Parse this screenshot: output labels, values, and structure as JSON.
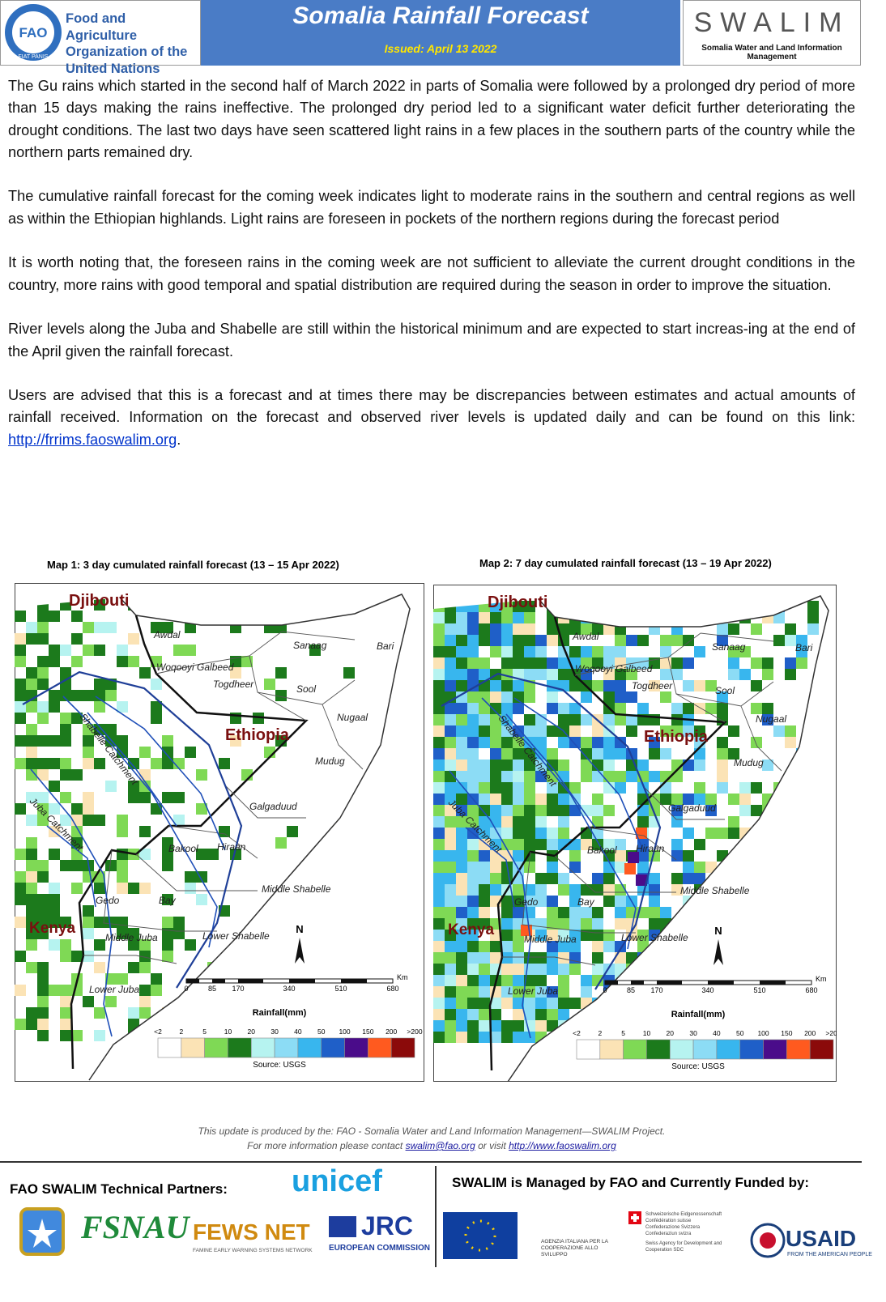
{
  "header": {
    "fao": "FAO",
    "fiat": "FIAT PANIS",
    "org_lines": [
      "Food and Agriculture",
      "Organization of the",
      "United Nations"
    ],
    "title": "Somalia Rainfall Forecast",
    "issued": "Issued:  April 13 2022",
    "swalim": "SWALIM",
    "swalim_sub": "Somalia Water and Land Information Management"
  },
  "paragraphs": [
    "The Gu rains which started in the second half of March 2022 in parts of Somalia were followed by a prolonged dry period of more than 15 days making the rains ineffective. The prolonged dry period led to a significant water deficit further deteriorating the drought conditions. The last two days have seen scattered light rains in a few places in the southern parts of the country while the northern parts remained dry.",
    "The cumulative rainfall forecast for the coming week indicates light to moderate  rains in the southern and  central regions as well as within the Ethiopian highlands. Light rains are foreseen in pockets of the northern regions during the forecast period",
    "It is worth noting that, the foreseen rains in the coming week are not sufficient to alleviate the current drought conditions in the country, more rains with good temporal and spatial distribution are required during the season in order to improve the situation.",
    "River levels along the Juba and Shabelle are still within the  historical minimum and are expected to start increas-ing at the end of the April given the rainfall forecast."
  ],
  "last_paragraph": {
    "text": "Users are advised that this is a forecast and at times there may be discrepancies between estimates and actual amounts of rainfall received. Information on the forecast and observed river levels is updated daily and can be found on this link: ",
    "link": "http://frrims.faoswalim.org",
    "end": "."
  },
  "maps": [
    {
      "title": "Map 1: 3 day cumulated rainfall forecast  (13 –  15 Apr 2022)"
    },
    {
      "title": "Map 2: 7 day cumulated rainfall forecast  (13 –  19 Apr 2022)"
    }
  ],
  "map_common": {
    "labels": [
      "Djibouti",
      "Awdal",
      "Sanaag",
      "Bari",
      "Woqooyi Galbeed",
      "Togdheer",
      "Sool",
      "Nugaal",
      "Ethiopia",
      "Mudug",
      "Galgaduud",
      "Bakool",
      "Hiraan",
      "Middle Shabelle",
      "Gedo",
      "Bay",
      "Kenya",
      "Middle Juba",
      "Lower Shabelle",
      "Lower Juba",
      "Shabelle Catchment",
      "Juba Catchment"
    ],
    "north": "N",
    "scale_ticks": [
      "0",
      "85",
      "170",
      "340",
      "510",
      "680"
    ],
    "scale_unit": "Km",
    "legend_title": "Rainfall(mm)",
    "legend_ticks": [
      "<2",
      "2",
      "5",
      "10",
      "20",
      "30",
      "40",
      "50",
      "100",
      "150",
      "200",
      ">200"
    ],
    "source": "Source: USGS"
  },
  "footer": {
    "line1": "This update is produced by the: FAO - Somalia Water and Land Information Management—SWALIM Project.",
    "pre": "For more information please contact ",
    "email": "swalim@fao.org",
    "mid": " or visit ",
    "url": "http://www.faoswalim.org"
  },
  "partners": {
    "left_title": "FAO SWALIM Technical Partners:",
    "right_title": "SWALIM is Managed by FAO and Currently Funded by:",
    "unicef": "unicef",
    "fsnau": "FSNAU",
    "fews": "FEWS NET",
    "fews_sub": "FAMINE EARLY WARNING SYSTEMS NETWORK",
    "jrc": "JRC",
    "jrc_sub": "EUROPEAN COMMISSION",
    "italy": "AGENZIA ITALIANA PER LA COOPERAZIONE ALLO SVILUPPO",
    "swiss": [
      "Schweizerische Eidgenossenschaft",
      "Confédération suisse",
      "Confederazione Svizzera",
      "Confederaziun svizra",
      "Swiss Agency for Development and Cooperation SDC"
    ],
    "usaid": "USAID",
    "usaid_sub": "FROM THE AMERICAN PEOPLE"
  }
}
